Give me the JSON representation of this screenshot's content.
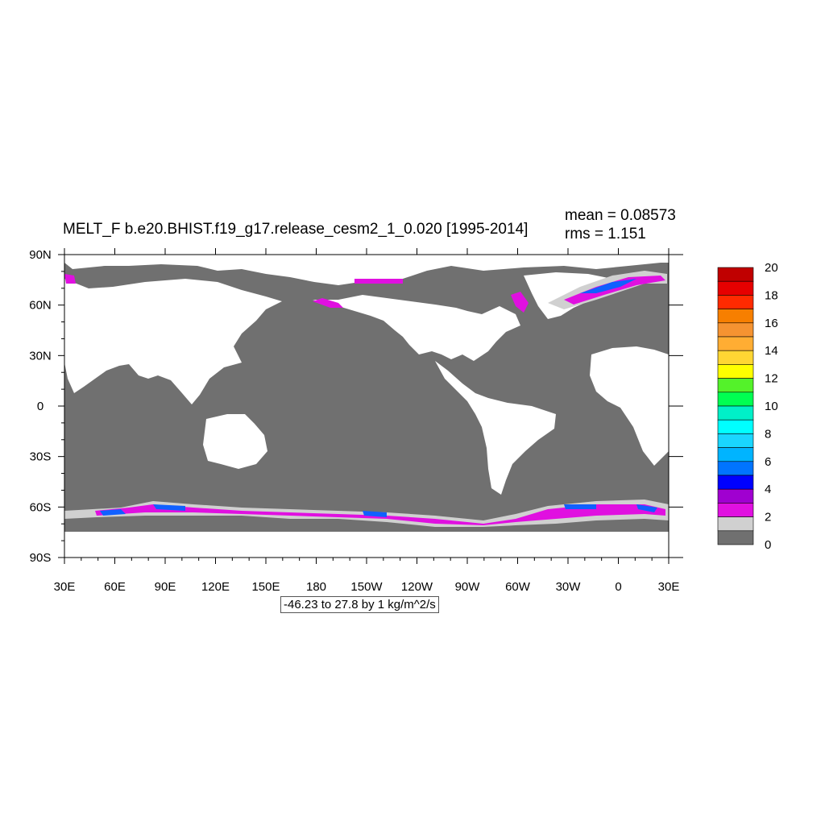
{
  "map": {
    "title": "MELT_F b.e20.BHIST.f19_g17.release_cesm2_1_0.020 [1995-2014]",
    "mean_text": "mean = 0.08573",
    "rms_text": "rms = 1.151",
    "range_text": "-46.23 to 27.8 by 1 kg/m^2/s",
    "projection": "cylindrical equidistant",
    "lon_ticks": [
      "30E",
      "60E",
      "90E",
      "120E",
      "150E",
      "180",
      "150W",
      "120W",
      "90W",
      "60W",
      "30W",
      "0",
      "30E"
    ],
    "lat_ticks": [
      "90N",
      "60N",
      "30N",
      "0",
      "30S",
      "60S",
      "90S"
    ],
    "colors": {
      "ocean_zero": "#707070",
      "land": "#ffffff",
      "low_band": "#d0d0d0",
      "magenta": "#e010e0",
      "blue": "#1060ff"
    }
  },
  "colorbar": {
    "labels": [
      "20",
      "18",
      "16",
      "14",
      "12",
      "10",
      "8",
      "6",
      "4",
      "2",
      "0"
    ],
    "colors_top_to_bottom": [
      "#c00000",
      "#e60000",
      "#ff2a00",
      "#f77f00",
      "#f59331",
      "#ffad33",
      "#ffd633",
      "#ffff00",
      "#54f22a",
      "#00ff52",
      "#00f0c8",
      "#00ffff",
      "#1ad6ff",
      "#00b4ff",
      "#0074ff",
      "#0000ff",
      "#a000d0",
      "#e010e0",
      "#d0d0d0",
      "#707070"
    ]
  }
}
